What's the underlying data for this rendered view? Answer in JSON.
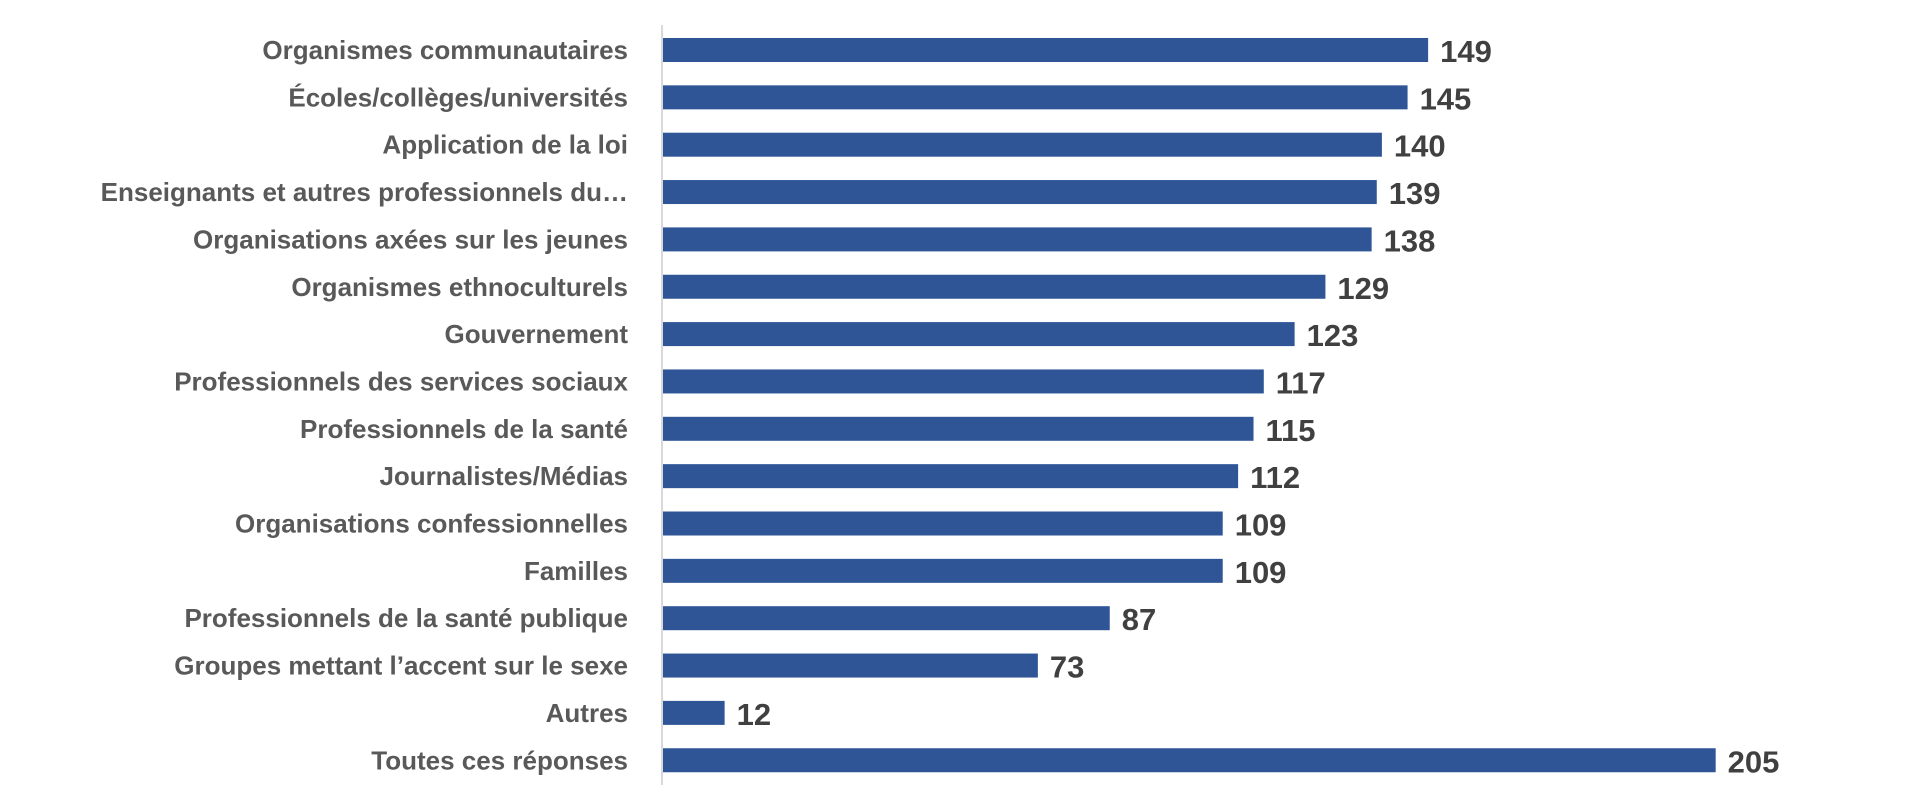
{
  "chart_data": {
    "type": "bar",
    "orientation": "horizontal",
    "title": "",
    "xlabel": "",
    "ylabel": "",
    "categories": [
      "Organismes communautaires",
      "Écoles/collèges/universités",
      "Application de la loi",
      "Enseignants et autres professionnels du…",
      "Organisations axées sur les jeunes",
      "Organismes ethnoculturels",
      "Gouvernement",
      "Professionnels des services sociaux",
      "Professionnels de la santé",
      "Journalistes/Médias",
      "Organisations confessionnelles",
      "Familles",
      "Professionnels de la santé publique",
      "Groupes mettant l’accent sur le sexe",
      "Autres",
      "Toutes ces réponses"
    ],
    "values": [
      149,
      145,
      140,
      139,
      138,
      129,
      123,
      117,
      115,
      112,
      109,
      109,
      87,
      73,
      12,
      205
    ],
    "xlim": [
      0,
      205
    ],
    "grid": false,
    "legend": "none",
    "data_labels": true,
    "bar_color": "#2F5597",
    "axis_color": "#D9D9D9"
  }
}
